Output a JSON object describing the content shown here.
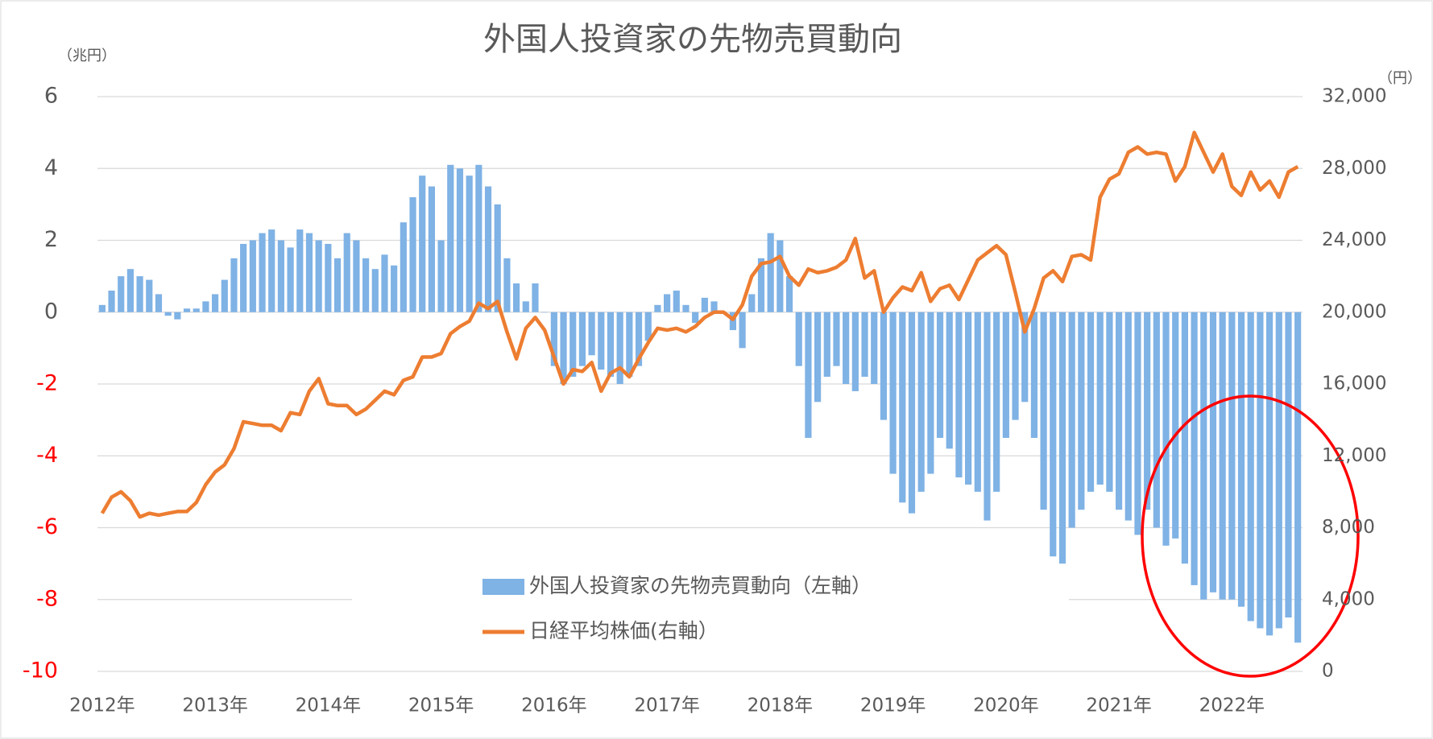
{
  "chart_data": {
    "type": "bar_line",
    "title": "外国人投資家の先物売買動向",
    "y_unit_label": "（兆円）",
    "y2_unit_label": "（円）",
    "categories": [
      "2012年",
      null,
      null,
      null,
      null,
      null,
      null,
      null,
      null,
      null,
      null,
      null,
      "2013年",
      null,
      null,
      null,
      null,
      null,
      null,
      null,
      null,
      null,
      null,
      null,
      "2014年",
      null,
      null,
      null,
      null,
      null,
      null,
      null,
      null,
      null,
      null,
      null,
      "2015年",
      null,
      null,
      null,
      null,
      null,
      null,
      null,
      null,
      null,
      null,
      null,
      "2016年",
      null,
      null,
      null,
      null,
      null,
      null,
      null,
      null,
      null,
      null,
      null,
      "2017年",
      null,
      null,
      null,
      null,
      null,
      null,
      null,
      null,
      null,
      null,
      null,
      "2018年",
      null,
      null,
      null,
      null,
      null,
      null,
      null,
      null,
      null,
      null,
      null,
      "2019年",
      null,
      null,
      null,
      null,
      null,
      null,
      null,
      null,
      null,
      null,
      null,
      "2020年",
      null,
      null,
      null,
      null,
      null,
      null,
      null,
      null,
      null,
      null,
      null,
      "2021年",
      null,
      null,
      null,
      null,
      null,
      null,
      null,
      null,
      null,
      null,
      null,
      "2022年",
      null,
      null,
      null,
      null,
      null,
      null,
      null
    ],
    "series": [
      {
        "name": "外国人投資家の先物売買動向（左軸）",
        "type": "bar",
        "color": "#7fb2e5",
        "axis": "y",
        "values": [
          0.2,
          0.6,
          1.0,
          1.2,
          1.0,
          0.9,
          0.5,
          -0.1,
          -0.2,
          0.1,
          0.1,
          0.3,
          0.5,
          0.9,
          1.5,
          1.9,
          2.0,
          2.2,
          2.3,
          2.0,
          1.8,
          2.3,
          2.2,
          2.0,
          1.9,
          1.5,
          2.2,
          2.0,
          1.5,
          1.2,
          1.6,
          1.3,
          2.5,
          3.2,
          3.8,
          3.5,
          2.0,
          4.1,
          4.0,
          3.8,
          4.1,
          3.5,
          3.0,
          1.5,
          0.8,
          0.3,
          0.8,
          0.0,
          -1.5,
          -2.0,
          -1.8,
          -1.5,
          -1.2,
          -1.6,
          -1.8,
          -2.0,
          -1.8,
          -1.5,
          -0.8,
          0.2,
          0.5,
          0.6,
          0.2,
          -0.3,
          0.4,
          0.3,
          0.0,
          -0.5,
          -1.0,
          0.5,
          1.5,
          2.2,
          2.0,
          1.0,
          -1.5,
          -3.5,
          -2.5,
          -1.8,
          -1.5,
          -2.0,
          -2.2,
          -1.8,
          -2.0,
          -3.0,
          -4.5,
          -5.3,
          -5.6,
          -5.0,
          -4.5,
          -3.5,
          -3.8,
          -4.6,
          -4.8,
          -5.0,
          -5.8,
          -5.0,
          -3.5,
          -3.0,
          -2.5,
          -3.5,
          -5.5,
          -6.8,
          -7.0,
          -6.0,
          -5.5,
          -5.0,
          -4.8,
          -5.0,
          -5.5,
          -5.8,
          -6.2,
          -5.5,
          -6.0,
          -6.5,
          -6.3,
          -7.0,
          -7.6,
          -8.0,
          -7.8,
          -8.0,
          -8.0,
          -8.2,
          -8.6,
          -8.8,
          -9.0,
          -8.8,
          -8.5,
          -9.2
        ]
      },
      {
        "name": "日経平均株価(右軸）",
        "type": "line",
        "color": "#ed7d31",
        "axis": "y2",
        "values": [
          8800,
          9700,
          10000,
          9500,
          8600,
          8800,
          8700,
          8800,
          8900,
          8900,
          9400,
          10400,
          11100,
          11500,
          12400,
          13900,
          13800,
          13700,
          13700,
          13400,
          14400,
          14300,
          15600,
          16300,
          14900,
          14800,
          14800,
          14300,
          14600,
          15100,
          15600,
          15400,
          16200,
          16400,
          17500,
          17500,
          17700,
          18800,
          19200,
          19500,
          20500,
          20200,
          20600,
          18900,
          17400,
          19100,
          19700,
          19000,
          17500,
          16000,
          16800,
          16700,
          17200,
          15600,
          16600,
          16900,
          16400,
          17400,
          18300,
          19100,
          19000,
          19100,
          18900,
          19200,
          19700,
          20000,
          20000,
          19600,
          20400,
          22000,
          22700,
          22800,
          23100,
          22000,
          21500,
          22400,
          22200,
          22300,
          22500,
          22900,
          24100,
          21900,
          22300,
          20000,
          20800,
          21400,
          21200,
          22200,
          20600,
          21300,
          21500,
          20700,
          21800,
          22900,
          23300,
          23700,
          23200,
          21100,
          18900,
          20200,
          21900,
          22300,
          21700,
          23100,
          23200,
          22900,
          26400,
          27400,
          27700,
          28900,
          29200,
          28800,
          28900,
          28800,
          27300,
          28100,
          30000,
          28900,
          27800,
          28800,
          27000,
          26500,
          27800,
          26800,
          27300,
          26400,
          27800,
          28100
        ]
      }
    ],
    "ylim": [
      -10,
      6
    ],
    "yticks": [
      -10,
      -8,
      -6,
      -4,
      -2,
      0,
      2,
      4,
      6
    ],
    "negative_tick_color": "#ff0000",
    "y2lim": [
      0,
      32000
    ],
    "y2ticks": [
      0,
      {
        "value": 4000,
        "label": "4,000"
      },
      {
        "value": 8000,
        "label": "8,000"
      },
      {
        "value": 12000,
        "label": "12,000"
      },
      {
        "value": 16000,
        "label": "16,000"
      },
      {
        "value": 20000,
        "label": "20,000"
      },
      {
        "value": 24000,
        "label": "24,000"
      },
      {
        "value": 28000,
        "label": "28,000"
      },
      {
        "value": 32000,
        "label": "32,000"
      }
    ],
    "grid": true
  }
}
